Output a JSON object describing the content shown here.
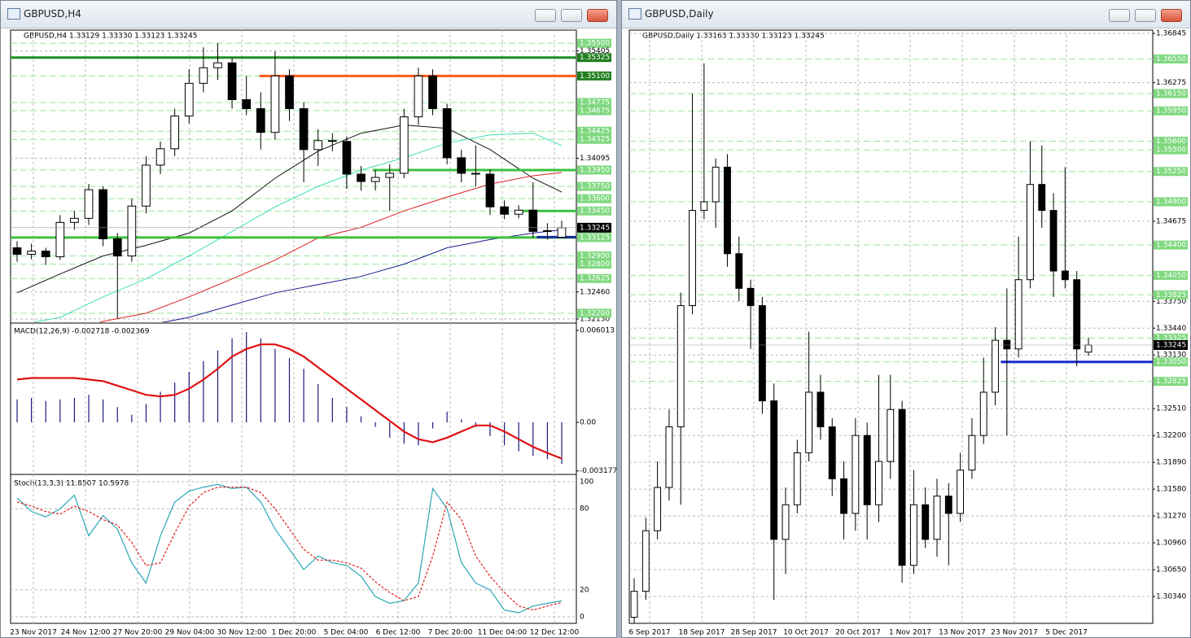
{
  "h4": {
    "title": "GBPUSD,H4",
    "header": "GBPUSD,H4  1.33129 1.33330 1.33123 1.33245",
    "ylim": [
      1.3209,
      1.3566
    ],
    "yticks": [
      {
        "value": 1.35405,
        "label": "1.35405"
      },
      {
        "value": 1.34095,
        "label": "1.34095"
      },
      {
        "value": 1.3246,
        "label": "1.32460"
      },
      {
        "value": 1.3213,
        "label": "1.32130"
      }
    ],
    "level_color": "#7fd87f",
    "levels": [
      {
        "value": 1.355,
        "label": "1.35500"
      },
      {
        "value": 1.35325,
        "label": "1.35325",
        "color": "#1f7f1f"
      },
      {
        "value": 1.351,
        "label": "1.35100",
        "color": "#1f7f1f"
      },
      {
        "value": 1.34775,
        "label": "1.34775"
      },
      {
        "value": 1.34675,
        "label": "1.34675"
      },
      {
        "value": 1.34425,
        "label": "1.34425"
      },
      {
        "value": 1.34325,
        "label": "1.34325"
      },
      {
        "value": 1.3395,
        "label": "1.33950"
      },
      {
        "value": 1.3375,
        "label": "1.33750"
      },
      {
        "value": 1.336,
        "label": "1.33600"
      },
      {
        "value": 1.3345,
        "label": "1.33450"
      },
      {
        "value": 1.33125,
        "label": "1.33125"
      },
      {
        "value": 1.329,
        "label": "1.32900"
      },
      {
        "value": 1.328,
        "label": "1.32800"
      },
      {
        "value": 1.32625,
        "label": "1.32625"
      },
      {
        "value": 1.322,
        "label": "1.32200"
      }
    ],
    "lines": [
      {
        "value": 1.35325,
        "color": "#1f8f1f"
      },
      {
        "value": 1.351,
        "color": "#ff5a1a"
      },
      {
        "value": 1.3395,
        "color": "#3cc03c"
      },
      {
        "value": 1.3345,
        "color": "#3cc03c"
      },
      {
        "value": 1.33125,
        "color": "#3cc03c"
      },
      {
        "value": 1.3313,
        "color": "#1a2aa0"
      }
    ],
    "candles": [
      [
        1.33,
        1.3308,
        1.3283,
        1.3292
      ],
      [
        1.3292,
        1.3305,
        1.3286,
        1.3296
      ],
      [
        1.3296,
        1.33,
        1.3279,
        1.3289
      ],
      [
        1.3289,
        1.334,
        1.3285,
        1.3331
      ],
      [
        1.3331,
        1.3345,
        1.3322,
        1.3336
      ],
      [
        1.3336,
        1.3378,
        1.3328,
        1.3371
      ],
      [
        1.3371,
        1.3375,
        1.3302,
        1.3311
      ],
      [
        1.3311,
        1.3318,
        1.3213,
        1.329
      ],
      [
        1.329,
        1.336,
        1.3283,
        1.3351
      ],
      [
        1.3351,
        1.3412,
        1.3342,
        1.3401
      ],
      [
        1.3401,
        1.343,
        1.339,
        1.3421
      ],
      [
        1.3421,
        1.347,
        1.3412,
        1.3461
      ],
      [
        1.3461,
        1.3518,
        1.3452,
        1.3501
      ],
      [
        1.3501,
        1.3545,
        1.349,
        1.352
      ],
      [
        1.352,
        1.355,
        1.3505,
        1.3526
      ],
      [
        1.3526,
        1.3532,
        1.347,
        1.3481
      ],
      [
        1.3481,
        1.351,
        1.3462,
        1.347
      ],
      [
        1.347,
        1.349,
        1.342,
        1.3441
      ],
      [
        1.3441,
        1.354,
        1.3432,
        1.351
      ],
      [
        1.351,
        1.3518,
        1.3455,
        1.347
      ],
      [
        1.347,
        1.3478,
        1.338,
        1.342
      ],
      [
        1.342,
        1.3445,
        1.34,
        1.3431
      ],
      [
        1.3431,
        1.344,
        1.3418,
        1.343
      ],
      [
        1.343,
        1.3436,
        1.3372,
        1.339
      ],
      [
        1.339,
        1.34,
        1.337,
        1.3381
      ],
      [
        1.3381,
        1.3395,
        1.337,
        1.3386
      ],
      [
        1.3386,
        1.3402,
        1.3345,
        1.3391
      ],
      [
        1.3391,
        1.347,
        1.3385,
        1.346
      ],
      [
        1.346,
        1.352,
        1.345,
        1.351
      ],
      [
        1.351,
        1.3518,
        1.3462,
        1.347
      ],
      [
        1.347,
        1.3476,
        1.3402,
        1.341
      ],
      [
        1.341,
        1.342,
        1.338,
        1.3391
      ],
      [
        1.3391,
        1.3425,
        1.3375,
        1.339
      ],
      [
        1.339,
        1.3396,
        1.334,
        1.335
      ],
      [
        1.335,
        1.3358,
        1.3335,
        1.3341
      ],
      [
        1.3341,
        1.3352,
        1.3336,
        1.3346
      ],
      [
        1.3346,
        1.338,
        1.3312,
        1.332
      ],
      [
        1.332,
        1.333,
        1.331,
        1.3321
      ],
      [
        1.33129,
        1.3333,
        1.33123,
        1.33245
      ]
    ],
    "ma_x": [
      0,
      3,
      6,
      9,
      12,
      15,
      18,
      21,
      24,
      27,
      30,
      33,
      36,
      38
    ],
    "ma": [
      {
        "color": "#111111",
        "values": [
          1.3245,
          1.3268,
          1.329,
          1.3303,
          1.3318,
          1.3345,
          1.3385,
          1.3418,
          1.344,
          1.345,
          1.3446,
          1.342,
          1.3385,
          1.3368
        ]
      },
      {
        "color": "#3de0b0",
        "values": [
          1.3205,
          1.3215,
          1.324,
          1.3262,
          1.329,
          1.332,
          1.335,
          1.3375,
          1.3395,
          1.341,
          1.3428,
          1.3438,
          1.344,
          1.3425
        ]
      },
      {
        "color": "#e02020",
        "values": [
          1.3185,
          1.3195,
          1.321,
          1.322,
          1.324,
          1.3262,
          1.3285,
          1.3312,
          1.3325,
          1.3345,
          1.3362,
          1.3378,
          1.3388,
          1.3392
        ]
      },
      {
        "color": "#1a1a90",
        "values": [
          1.317,
          1.318,
          1.3192,
          1.3205,
          1.3215,
          1.323,
          1.3245,
          1.3255,
          1.3265,
          1.328,
          1.33,
          1.331,
          1.3318,
          1.3322
        ]
      }
    ],
    "macd": {
      "label": "MACD(12,26,9) -0.002718 -0.002369",
      "ylim": [
        -0.0033,
        0.00644
      ],
      "yticks": [
        0.006013,
        {
          "value": 0,
          "label": "0.00"
        },
        -0.003177
      ],
      "hist_color": "#1a1a80",
      "signal_color": "#e01010",
      "hist": [
        0.0015,
        0.0016,
        0.0014,
        0.0015,
        0.0016,
        0.0018,
        0.0015,
        0.001,
        0.0005,
        0.0012,
        0.002,
        0.0026,
        0.0033,
        0.004,
        0.0047,
        0.0055,
        0.0059,
        0.0055,
        0.0048,
        0.0042,
        0.0035,
        0.0025,
        0.0016,
        0.001,
        0.0004,
        -0.0003,
        -0.001,
        -0.0014,
        -0.0015,
        -0.0004,
        0.0007,
        0.0002,
        -0.0003,
        -0.0009,
        -0.0015,
        -0.0019,
        -0.0022,
        -0.0024,
        -0.002718
      ],
      "signal": [
        0.0028,
        0.0029,
        0.0029,
        0.0029,
        0.0029,
        0.0028,
        0.0027,
        0.0024,
        0.0021,
        0.0018,
        0.0017,
        0.0018,
        0.0022,
        0.0028,
        0.0035,
        0.0043,
        0.0048,
        0.0051,
        0.0051,
        0.0048,
        0.0043,
        0.0036,
        0.0029,
        0.0022,
        0.0015,
        0.0008,
        0.0001,
        -0.0006,
        -0.0011,
        -0.0013,
        -0.001,
        -0.0006,
        -0.0002,
        -0.0002,
        -0.0006,
        -0.0011,
        -0.0016,
        -0.002,
        -0.002369
      ]
    },
    "stoch": {
      "label": "Stoch(13,3,3) 11.8507 10.5978",
      "ylim": [
        -4.8,
        104.2
      ],
      "yticks": [
        100,
        80,
        20,
        0
      ],
      "main_color": "#2aa8b8",
      "signal_color": "#e02020",
      "main": [
        88,
        78,
        74,
        80,
        90,
        60,
        75,
        65,
        40,
        25,
        60,
        85,
        93,
        96,
        98,
        95,
        96,
        85,
        65,
        50,
        35,
        45,
        40,
        38,
        30,
        15,
        10,
        12,
        25,
        95,
        80,
        40,
        25,
        20,
        5,
        3,
        8,
        10,
        11.8507
      ],
      "signal": [
        85,
        82,
        78,
        76,
        82,
        78,
        72,
        68,
        55,
        38,
        40,
        62,
        82,
        92,
        96,
        96,
        96,
        92,
        80,
        65,
        50,
        42,
        42,
        40,
        36,
        26,
        18,
        12,
        15,
        45,
        85,
        72,
        45,
        30,
        18,
        8,
        5,
        8,
        10.5978
      ]
    },
    "dates": [
      "23 Nov 2017",
      "24 Nov 12:00",
      "27 Nov 20:00",
      "29 Nov 04:00",
      "30 Nov 12:00",
      "1 Dec 20:00",
      "5 Dec 04:00",
      "6 Dec 12:00",
      "7 Dec 20:00",
      "11 Dec 04:00",
      "12 Dec 12:00"
    ]
  },
  "daily": {
    "title": "GBPUSD,Daily",
    "header": "GBPUSD,Daily  1.33163 1.33330 1.33123 1.33245",
    "ylim": [
      1.3003,
      1.36883
    ],
    "yticks": [
      {
        "value": 1.36845,
        "label": "1.36845"
      },
      {
        "value": 1.36275,
        "label": "1.36275"
      },
      {
        "value": 1.34675,
        "label": "1.34675"
      },
      {
        "value": 1.3375,
        "label": "1.33750"
      },
      {
        "value": 1.3344,
        "label": "1.33440"
      },
      {
        "value": 1.3313,
        "label": "1.33130"
      },
      {
        "value": 1.3251,
        "label": "1.32510"
      },
      {
        "value": 1.322,
        "label": "1.32200"
      },
      {
        "value": 1.3189,
        "label": "1.31890"
      },
      {
        "value": 1.3158,
        "label": "1.31580"
      },
      {
        "value": 1.3127,
        "label": "1.31270"
      },
      {
        "value": 1.3096,
        "label": "1.30960"
      },
      {
        "value": 1.3065,
        "label": "1.30650"
      },
      {
        "value": 1.3034,
        "label": "1.30340"
      }
    ],
    "level_color": "#7fd87f",
    "levels": [
      {
        "value": 1.3655,
        "label": "1.36550"
      },
      {
        "value": 1.3615,
        "label": "1.36150"
      },
      {
        "value": 1.3595,
        "label": "1.35950"
      },
      {
        "value": 1.356,
        "label": "1.35600"
      },
      {
        "value": 1.355,
        "label": "1.35500"
      },
      {
        "value": 1.3525,
        "label": "1.35250"
      },
      {
        "value": 1.349,
        "label": "1.34900"
      },
      {
        "value": 1.344,
        "label": "1.34400"
      },
      {
        "value": 1.3405,
        "label": "1.34050"
      },
      {
        "value": 1.33825,
        "label": "1.33825"
      },
      {
        "value": 1.33325,
        "label": "1.33325"
      },
      {
        "value": 1.3305,
        "label": "1.33050"
      },
      {
        "value": 1.32825,
        "label": "1.32825"
      }
    ],
    "lines": [
      {
        "value": 1.3305,
        "color": "#1a2ad0"
      }
    ],
    "candles": [
      [
        1.301,
        1.3055,
        1.3003,
        1.304
      ],
      [
        1.304,
        1.3125,
        1.303,
        1.311
      ],
      [
        1.311,
        1.319,
        1.31,
        1.316
      ],
      [
        1.316,
        1.325,
        1.3145,
        1.323
      ],
      [
        1.323,
        1.3385,
        1.314,
        1.337
      ],
      [
        1.337,
        1.3615,
        1.336,
        1.348
      ],
      [
        1.348,
        1.365,
        1.347,
        1.349
      ],
      [
        1.349,
        1.354,
        1.346,
        1.353
      ],
      [
        1.353,
        1.3545,
        1.3415,
        1.343
      ],
      [
        1.343,
        1.345,
        1.3375,
        1.339
      ],
      [
        1.339,
        1.34,
        1.332,
        1.337
      ],
      [
        1.337,
        1.338,
        1.3245,
        1.326
      ],
      [
        1.326,
        1.328,
        1.303,
        1.31
      ],
      [
        1.31,
        1.316,
        1.306,
        1.314
      ],
      [
        1.314,
        1.3215,
        1.313,
        1.32
      ],
      [
        1.32,
        1.334,
        1.319,
        1.327
      ],
      [
        1.327,
        1.329,
        1.3215,
        1.323
      ],
      [
        1.323,
        1.324,
        1.315,
        1.317
      ],
      [
        1.317,
        1.319,
        1.31,
        1.313
      ],
      [
        1.313,
        1.324,
        1.311,
        1.322
      ],
      [
        1.322,
        1.3235,
        1.31,
        1.314
      ],
      [
        1.314,
        1.329,
        1.312,
        1.319
      ],
      [
        1.319,
        1.329,
        1.317,
        1.325
      ],
      [
        1.325,
        1.326,
        1.305,
        1.307
      ],
      [
        1.307,
        1.318,
        1.306,
        1.314
      ],
      [
        1.314,
        1.316,
        1.309,
        1.31
      ],
      [
        1.31,
        1.317,
        1.308,
        1.315
      ],
      [
        1.315,
        1.3165,
        1.307,
        1.313
      ],
      [
        1.313,
        1.32,
        1.312,
        1.318
      ],
      [
        1.318,
        1.324,
        1.317,
        1.322
      ],
      [
        1.322,
        1.331,
        1.321,
        1.327
      ],
      [
        1.327,
        1.3345,
        1.3255,
        1.333
      ],
      [
        1.333,
        1.339,
        1.322,
        1.332
      ],
      [
        1.332,
        1.345,
        1.331,
        1.34
      ],
      [
        1.34,
        1.356,
        1.339,
        1.351
      ],
      [
        1.351,
        1.3555,
        1.346,
        1.348
      ],
      [
        1.348,
        1.35,
        1.338,
        1.341
      ],
      [
        1.341,
        1.353,
        1.339,
        1.34
      ],
      [
        1.34,
        1.341,
        1.33,
        1.332
      ],
      [
        1.33163,
        1.3333,
        1.33123,
        1.33245
      ]
    ],
    "dates": [
      "6 Sep 2017",
      "18 Sep 2017",
      "28 Sep 2017",
      "10 Oct 2017",
      "20 Oct 2017",
      "1 Nov 2017",
      "13 Nov 2017",
      "23 Nov 2017",
      "5 Dec 2017"
    ]
  }
}
